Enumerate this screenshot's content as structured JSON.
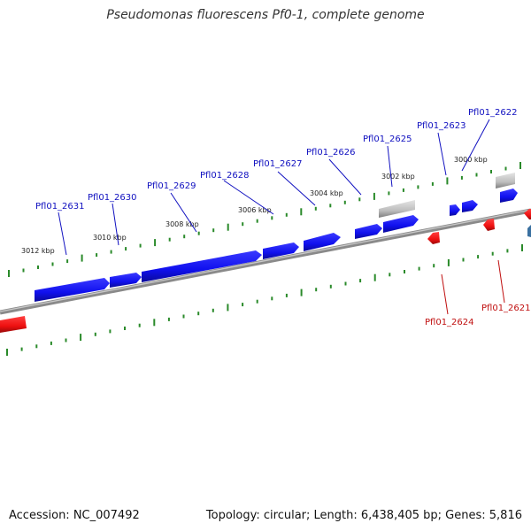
{
  "title": "Pseudomonas fluorescens Pf0-1, complete genome",
  "footer": {
    "accession": "Accession: NC_007492",
    "summary": "Topology: circular; Length: 6,438,405 bp; Genes: 5,816"
  },
  "colors": {
    "forward_gene": "#1a1aff",
    "reverse_gene": "#ff1a1a",
    "rna_gene": "#b8b8b8",
    "backbone": "#888888",
    "ticks": "#2a8a2a",
    "label_fwd": "#1010c0",
    "label_rev": "#c01010"
  },
  "scale_ticks": [
    {
      "label": "3000 kbp"
    },
    {
      "label": "3002 kbp"
    },
    {
      "label": "3004 kbp"
    },
    {
      "label": "3006 kbp"
    },
    {
      "label": "3008 kbp"
    },
    {
      "label": "3010 kbp"
    },
    {
      "label": "3012 kbp"
    }
  ],
  "genes_forward": [
    {
      "label": "Pfl01_2622"
    },
    {
      "label": "Pfl01_2623"
    },
    {
      "label": "Pfl01_2625"
    },
    {
      "label": "Pfl01_2626"
    },
    {
      "label": "Pfl01_2627"
    },
    {
      "label": "Pfl01_2628"
    },
    {
      "label": "Pfl01_2629"
    },
    {
      "label": "Pfl01_2630"
    },
    {
      "label": "Pfl01_2631"
    }
  ],
  "genes_reverse": [
    {
      "label": "Pfl01_2621"
    },
    {
      "label": "Pfl01_2624"
    }
  ]
}
